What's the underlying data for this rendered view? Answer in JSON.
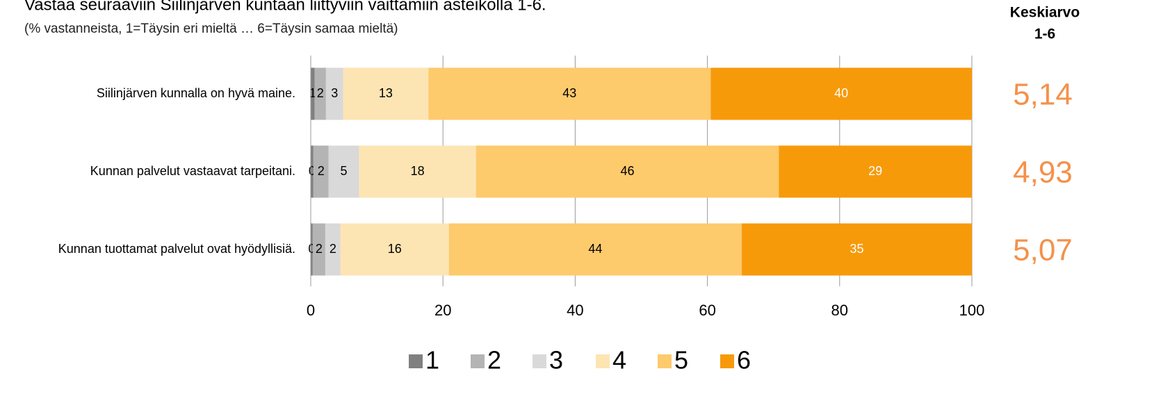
{
  "chart_data": {
    "type": "stacked-bar-horizontal",
    "title": "Vastaa seuraaviin Siilinjärven kuntaan liittyviin väittämiin asteikolla 1-6.",
    "subtitle": "(% vastanneista, 1=Täysin eri mieltä … 6=Täysin samaa mieltä)",
    "categories": [
      "Siilinjärven kunnalla on hyvä maine.",
      "Kunnan palvelut vastaavat tarpeitani.",
      "Kunnan tuottamat palvelut ovat hyödyllisiä."
    ],
    "series": [
      {
        "name": "1",
        "color": "#808080",
        "values": [
          0.6,
          0.4,
          0.3
        ],
        "value_labels": [
          "1",
          "0",
          "0"
        ]
      },
      {
        "name": "2",
        "color": "#b4b4b4",
        "values": [
          1.7,
          2.3,
          1.9
        ],
        "value_labels": [
          "2",
          "2",
          "2"
        ]
      },
      {
        "name": "3",
        "color": "#d9d9d9",
        "values": [
          2.6,
          4.6,
          2.3
        ],
        "value_labels": [
          "3",
          "5",
          "2"
        ]
      },
      {
        "name": "4",
        "color": "#fde4b3",
        "values": [
          12.9,
          17.7,
          16.4
        ],
        "value_labels": [
          "13",
          "18",
          "16"
        ]
      },
      {
        "name": "5",
        "color": "#fdca6c",
        "values": [
          42.7,
          45.8,
          44.3
        ],
        "value_labels": [
          "43",
          "46",
          "44"
        ]
      },
      {
        "name": "6",
        "color": "#f79a0a",
        "values": [
          39.5,
          29.2,
          34.8
        ],
        "value_labels": [
          "40",
          "29",
          "35"
        ]
      }
    ],
    "xlim": [
      0,
      100
    ],
    "xticks": [
      0,
      20,
      40,
      60,
      80,
      100
    ],
    "grid": true,
    "legend": "bottom",
    "average_header": [
      "Keskiarvo",
      "1-6"
    ],
    "averages": [
      5.14,
      4.93,
      5.07
    ],
    "average_labels": [
      "5,14",
      "4,93",
      "5,07"
    ],
    "average_color": "#f4914a"
  }
}
